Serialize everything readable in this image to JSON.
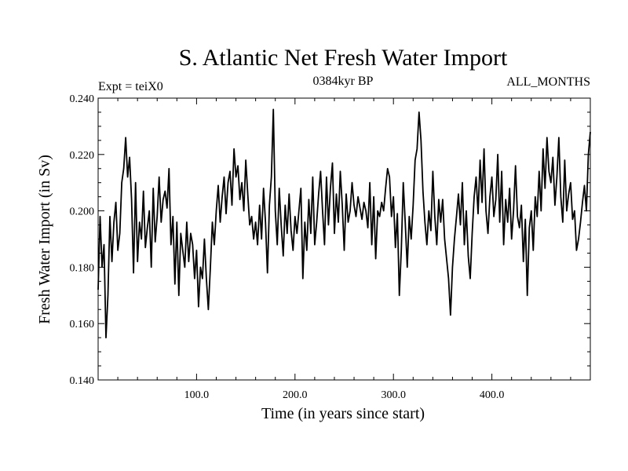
{
  "chart_data": {
    "type": "line",
    "title": "S. Atlantic Net Fresh Water Import",
    "subtitle_left": "Expt = teiX0",
    "subtitle_center": "0384kyr BP",
    "subtitle_right": "ALL_MONTHS",
    "xlabel": "Time (in years since start)",
    "ylabel": "Fresh Water Import (in Sv)",
    "xlim": [
      0,
      500
    ],
    "ylim": [
      0.14,
      0.24
    ],
    "x_tick_labels": [
      "100.0",
      "200.0",
      "300.0",
      "400.0"
    ],
    "y_tick_labels": [
      "0.140",
      "0.160",
      "0.180",
      "0.200",
      "0.220",
      "0.240"
    ],
    "grid": false,
    "line_color": "#000000",
    "series": [
      {
        "x": [
          0,
          2,
          4,
          6,
          8,
          10,
          12,
          14,
          16,
          18,
          20,
          22,
          24,
          26,
          28,
          30,
          32,
          34,
          36,
          38,
          40,
          42,
          44,
          46,
          48,
          50,
          52,
          54,
          56,
          58,
          60,
          62,
          64,
          66,
          68,
          70,
          72,
          74,
          76,
          78,
          80,
          82,
          84,
          86,
          88,
          90,
          92,
          94,
          96,
          98,
          100,
          102,
          104,
          106,
          108,
          110,
          112,
          114,
          116,
          118,
          120,
          122,
          124,
          126,
          128,
          130,
          132,
          134,
          136,
          138,
          140,
          142,
          144,
          146,
          148,
          150,
          152,
          154,
          156,
          158,
          160,
          162,
          164,
          166,
          168,
          170,
          172,
          174,
          176,
          178,
          180,
          182,
          184,
          186,
          188,
          190,
          192,
          194,
          196,
          198,
          200,
          202,
          204,
          206,
          208,
          210,
          212,
          214,
          216,
          218,
          220,
          222,
          224,
          226,
          228,
          230,
          232,
          234,
          236,
          238,
          240,
          242,
          244,
          246,
          248,
          250,
          252,
          254,
          256,
          258,
          260,
          262,
          264,
          266,
          268,
          270,
          272,
          274,
          276,
          278,
          280,
          282,
          284,
          286,
          288,
          290,
          292,
          294,
          296,
          298,
          300,
          302,
          304,
          306,
          308,
          310,
          312,
          314,
          316,
          318,
          320,
          322,
          324,
          326,
          328,
          330,
          332,
          334,
          336,
          338,
          340,
          342,
          344,
          346,
          348,
          350,
          352,
          354,
          356,
          358,
          360,
          362,
          364,
          366,
          368,
          370,
          372,
          374,
          376,
          378,
          380,
          382,
          384,
          386,
          388,
          390,
          392,
          394,
          396,
          398,
          400,
          402,
          404,
          406,
          408,
          410,
          412,
          414,
          416,
          418,
          420,
          422,
          424,
          426,
          428,
          430,
          432,
          434,
          436,
          438,
          440,
          442,
          444,
          446,
          448,
          450,
          452,
          454,
          456,
          458,
          460,
          462,
          464,
          466,
          468,
          470,
          472,
          474,
          476,
          478,
          480,
          482,
          484,
          486,
          488,
          490,
          492,
          494,
          496,
          498,
          500
        ],
        "values": [
          0.172,
          0.198,
          0.18,
          0.188,
          0.155,
          0.17,
          0.198,
          0.182,
          0.196,
          0.203,
          0.186,
          0.192,
          0.21,
          0.215,
          0.226,
          0.212,
          0.219,
          0.204,
          0.178,
          0.21,
          0.182,
          0.196,
          0.19,
          0.207,
          0.187,
          0.194,
          0.2,
          0.18,
          0.208,
          0.189,
          0.198,
          0.212,
          0.196,
          0.204,
          0.207,
          0.201,
          0.215,
          0.188,
          0.198,
          0.174,
          0.196,
          0.17,
          0.192,
          0.186,
          0.18,
          0.196,
          0.182,
          0.192,
          0.188,
          0.176,
          0.186,
          0.166,
          0.18,
          0.176,
          0.19,
          0.176,
          0.165,
          0.18,
          0.196,
          0.188,
          0.2,
          0.209,
          0.196,
          0.205,
          0.212,
          0.199,
          0.21,
          0.214,
          0.202,
          0.222,
          0.212,
          0.216,
          0.204,
          0.21,
          0.2,
          0.218,
          0.206,
          0.195,
          0.198,
          0.19,
          0.196,
          0.188,
          0.202,
          0.19,
          0.208,
          0.196,
          0.178,
          0.202,
          0.212,
          0.236,
          0.2,
          0.188,
          0.208,
          0.195,
          0.184,
          0.202,
          0.192,
          0.206,
          0.193,
          0.186,
          0.198,
          0.192,
          0.2,
          0.208,
          0.176,
          0.196,
          0.186,
          0.204,
          0.192,
          0.212,
          0.188,
          0.196,
          0.206,
          0.214,
          0.2,
          0.188,
          0.212,
          0.195,
          0.208,
          0.217,
          0.192,
          0.206,
          0.196,
          0.214,
          0.202,
          0.186,
          0.206,
          0.196,
          0.2,
          0.21,
          0.202,
          0.198,
          0.205,
          0.201,
          0.197,
          0.203,
          0.2,
          0.194,
          0.21,
          0.188,
          0.205,
          0.183,
          0.2,
          0.198,
          0.203,
          0.2,
          0.208,
          0.215,
          0.212,
          0.198,
          0.205,
          0.187,
          0.199,
          0.17,
          0.186,
          0.21,
          0.196,
          0.18,
          0.198,
          0.19,
          0.202,
          0.218,
          0.222,
          0.235,
          0.225,
          0.207,
          0.196,
          0.188,
          0.2,
          0.193,
          0.214,
          0.198,
          0.188,
          0.204,
          0.196,
          0.204,
          0.19,
          0.183,
          0.176,
          0.163,
          0.18,
          0.19,
          0.198,
          0.206,
          0.195,
          0.21,
          0.188,
          0.2,
          0.184,
          0.176,
          0.192,
          0.205,
          0.212,
          0.199,
          0.218,
          0.203,
          0.222,
          0.2,
          0.192,
          0.205,
          0.212,
          0.198,
          0.204,
          0.22,
          0.196,
          0.214,
          0.188,
          0.204,
          0.196,
          0.208,
          0.19,
          0.2,
          0.216,
          0.198,
          0.194,
          0.202,
          0.182,
          0.197,
          0.17,
          0.194,
          0.2,
          0.186,
          0.205,
          0.198,
          0.214,
          0.2,
          0.222,
          0.208,
          0.226,
          0.214,
          0.21,
          0.219,
          0.202,
          0.212,
          0.226,
          0.205,
          0.196,
          0.218,
          0.2,
          0.206,
          0.21,
          0.197,
          0.2,
          0.186,
          0.19,
          0.196,
          0.203,
          0.209,
          0.2,
          0.22,
          0.228
        ]
      }
    ]
  }
}
